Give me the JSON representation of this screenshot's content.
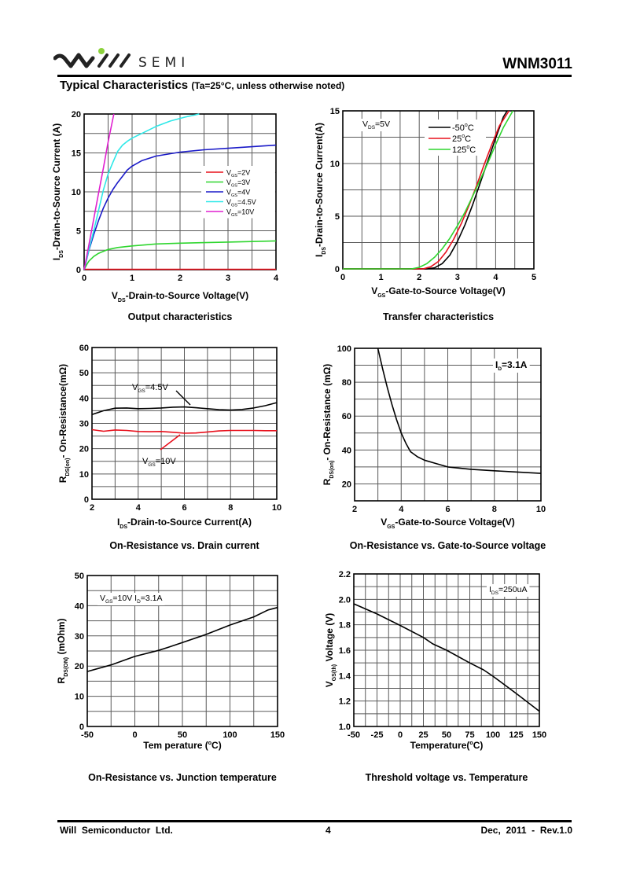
{
  "header": {
    "brand": "SEMI",
    "logo_text": "Will SEMI",
    "part_number": "WNM3011",
    "section_title": "Typical Characteristics",
    "section_condition": "(Ta=25°C, unless otherwise noted)"
  },
  "footer": {
    "company": "Will  Semiconductor  Ltd.",
    "page": "4",
    "revision": "Dec,  2011  -  Rev.1.0"
  },
  "colors": {
    "red": "#e8101c",
    "green": "#2fd62f",
    "blue": "#1a1ac8",
    "cyan": "#2ee8e8",
    "magenta": "#e020d0",
    "black": "#000000",
    "logo_green": "#8cd23c"
  },
  "chart_data": [
    {
      "id": "output",
      "type": "line",
      "title": "Output characteristics",
      "xlabel": "V_DS-Drain-to-Source Voltage(V)",
      "xlabel_main": "V",
      "xlabel_sub": "DS",
      "xlabel_rest": "-Drain-to-Source Voltage(V)",
      "ylabel_main": "I",
      "ylabel_sub": "DS",
      "ylabel_rest": "-Drain-to-Source Current (A)",
      "xlim": [
        0,
        4
      ],
      "ylim": [
        0,
        20
      ],
      "xticks": [
        0,
        1,
        2,
        3,
        4
      ],
      "yticks": [
        0,
        5,
        10,
        15,
        20
      ],
      "xgrid": [
        0.5,
        1,
        1.5,
        2,
        2.5,
        3,
        3.5
      ],
      "ygrid": [
        2.5,
        5,
        7.5,
        10,
        12.5,
        15,
        17.5
      ],
      "legend": "center-right",
      "series": [
        {
          "name": "V_GS=2V",
          "label_main": "V",
          "label_sub": "GS",
          "label_rest": "=2V",
          "color": "#e8101c",
          "x": [
            0,
            4
          ],
          "y": [
            0.05,
            0.05
          ]
        },
        {
          "name": "V_GS=3V",
          "label_main": "V",
          "label_sub": "GS",
          "label_rest": "=3V",
          "color": "#2fd62f",
          "x": [
            0,
            0.05,
            0.1,
            0.2,
            0.3,
            0.5,
            0.7,
            1.0,
            1.5,
            2.0,
            3.0,
            4.0
          ],
          "y": [
            0,
            0.6,
            1.1,
            1.7,
            2.1,
            2.6,
            2.85,
            3.05,
            3.3,
            3.4,
            3.55,
            3.7
          ]
        },
        {
          "name": "V_GS=4V",
          "label_main": "V",
          "label_sub": "GS",
          "label_rest": "=4V",
          "color": "#1a1ac8",
          "x": [
            0,
            0.1,
            0.2,
            0.3,
            0.4,
            0.5,
            0.6,
            0.7,
            0.8,
            0.9,
            1.0,
            1.2,
            1.5,
            2.0,
            2.5,
            3.0,
            3.5,
            4.0
          ],
          "y": [
            0,
            2.5,
            4.5,
            6.3,
            7.9,
            9.2,
            10.3,
            11.2,
            12.0,
            12.8,
            13.3,
            14.0,
            14.6,
            15.1,
            15.4,
            15.6,
            15.8,
            16.0
          ]
        },
        {
          "name": "V_GS=4.5V",
          "label_main": "V",
          "label_sub": "GS",
          "label_rest": "=4.5V",
          "color": "#2ee8e8",
          "x": [
            0,
            0.1,
            0.2,
            0.3,
            0.4,
            0.5,
            0.6,
            0.7,
            0.8,
            0.9,
            1.0,
            1.2,
            1.5,
            1.8,
            2.1,
            2.4
          ],
          "y": [
            0,
            2.6,
            5.0,
            7.6,
            10.2,
            12.3,
            13.8,
            15.2,
            16.0,
            16.5,
            16.9,
            17.5,
            18.4,
            19.1,
            19.6,
            20.0
          ]
        },
        {
          "name": "V_GS=10V",
          "label_main": "V",
          "label_sub": "GS",
          "label_rest": "=10V",
          "color": "#e020d0",
          "x": [
            0,
            0.1,
            0.2,
            0.3,
            0.4,
            0.5,
            0.62
          ],
          "y": [
            0,
            3.2,
            6.5,
            9.8,
            13.0,
            16.4,
            20.0
          ]
        }
      ]
    },
    {
      "id": "transfer",
      "type": "line",
      "title": "Transfer characteristics",
      "xlabel": "V_GS-Gate-to-Source Voltage(V)",
      "xlabel_main": "V",
      "xlabel_sub": "GS",
      "xlabel_rest": "-Gate-to-Source Voltage(V)",
      "ylabel_main": "I",
      "ylabel_sub": "DS",
      "ylabel_rest": "-Drain-to-Source Current(A)",
      "xlim": [
        0,
        5
      ],
      "ylim": [
        0,
        15
      ],
      "xticks": [
        0,
        1,
        2,
        3,
        4,
        5
      ],
      "yticks": [
        0,
        5,
        10,
        15
      ],
      "xgrid": [
        0.5,
        1,
        1.5,
        2,
        2.5,
        3,
        3.5,
        4,
        4.5
      ],
      "ygrid": [
        2.5,
        5,
        7.5,
        10,
        12.5
      ],
      "annotation": {
        "main": "V",
        "sub": "DS",
        "rest": "=5V"
      },
      "legend": "top-center",
      "series": [
        {
          "name": "-50°C",
          "label_main": "-50",
          "label_sup": "o",
          "label_rest": "C",
          "color": "#000000",
          "x": [
            0,
            2.2,
            2.4,
            2.6,
            2.8,
            3.0,
            3.2,
            3.4,
            3.6,
            3.8,
            4.0,
            4.2,
            4.3
          ],
          "y": [
            0,
            0,
            0.1,
            0.5,
            1.3,
            2.6,
            4.2,
            6.1,
            8.2,
            10.3,
            12.4,
            14.4,
            15.0
          ]
        },
        {
          "name": "25°C",
          "label_main": "25",
          "label_sup": "o",
          "label_rest": "C",
          "color": "#e8101c",
          "x": [
            0,
            2.1,
            2.3,
            2.5,
            2.7,
            2.9,
            3.1,
            3.3,
            3.5,
            3.7,
            3.9,
            4.1,
            4.35
          ],
          "y": [
            0,
            0,
            0.2,
            0.7,
            1.6,
            2.8,
            4.3,
            6.0,
            7.9,
            9.9,
            11.8,
            13.6,
            15.0
          ]
        },
        {
          "name": "125°C",
          "label_main": "125",
          "label_sup": "o",
          "label_rest": "C",
          "color": "#2fd62f",
          "x": [
            0,
            1.8,
            2.0,
            2.2,
            2.4,
            2.6,
            2.8,
            3.0,
            3.2,
            3.4,
            3.6,
            3.8,
            4.0,
            4.2,
            4.45
          ],
          "y": [
            0,
            0,
            0.15,
            0.5,
            1.1,
            1.9,
            2.9,
            4.1,
            5.4,
            6.9,
            8.5,
            10.1,
            11.8,
            13.4,
            15.0
          ]
        }
      ]
    },
    {
      "id": "rds_vs_id",
      "type": "line",
      "title": "On-Resistance vs. Drain current",
      "xlabel": "I_DS-Drain-to-Source Current(A)",
      "xlabel_main": "I",
      "xlabel_sub": "DS",
      "xlabel_rest": "-Drain-to-Source Current(A)",
      "ylabel_main": "R",
      "ylabel_sub": "DS(on)",
      "ylabel_rest": "- On-Resistance(mΩ)",
      "xlim": [
        2,
        10
      ],
      "ylim": [
        0,
        60
      ],
      "xticks": [
        2,
        4,
        6,
        8,
        10
      ],
      "yticks": [
        0,
        10,
        20,
        30,
        40,
        50,
        60
      ],
      "xgrid": [
        3,
        4,
        5,
        6,
        7,
        8,
        9
      ],
      "ygrid": [
        5,
        10,
        15,
        20,
        25,
        30,
        35,
        40,
        45,
        50,
        55
      ],
      "series": [
        {
          "name": "V_GS=4.5V",
          "label_main": "V",
          "label_sub": "GS",
          "label_rest": "=4.5V",
          "color": "#000000",
          "x": [
            2,
            2.5,
            3,
            3.5,
            4,
            4.5,
            5,
            5.5,
            6,
            6.5,
            7,
            7.5,
            8,
            8.5,
            9,
            9.5,
            10
          ],
          "y": [
            33.5,
            35,
            36,
            36.1,
            35.8,
            35.9,
            36.1,
            36.4,
            36.5,
            36.2,
            35.8,
            35.4,
            35.3,
            35.5,
            36.1,
            37,
            38.2
          ]
        },
        {
          "name": "V_GS=10V",
          "label_main": "V",
          "label_sub": "GS",
          "label_rest": "=10V",
          "color": "#e8101c",
          "x": [
            2,
            2.5,
            3,
            3.5,
            4,
            4.5,
            5,
            5.5,
            6,
            6.5,
            7,
            7.5,
            8,
            8.5,
            9,
            9.5,
            10
          ],
          "y": [
            27.5,
            26.9,
            27.4,
            27.2,
            26.8,
            26.7,
            26.8,
            26.5,
            26.1,
            26.2,
            26.6,
            27.0,
            27.2,
            27.2,
            27.2,
            27.1,
            27.1
          ]
        }
      ]
    },
    {
      "id": "rds_vs_vgs",
      "type": "line",
      "title": "On-Resistance vs. Gate-to-Source voltage",
      "xlabel": "V_GS-Gate-to-Source Voltage(V)",
      "xlabel_main": "V",
      "xlabel_sub": "GS",
      "xlabel_rest": "-Gate-to-Source Voltage(V)",
      "ylabel_main": "R",
      "ylabel_sub": "DS(on)",
      "ylabel_rest": "- On-Resistance (mΩ)",
      "xlim": [
        2,
        10
      ],
      "ylim": [
        10,
        100
      ],
      "xticks": [
        2,
        4,
        6,
        8,
        10
      ],
      "yticks": [
        20,
        40,
        60,
        80,
        100
      ],
      "xgrid": [
        3,
        4,
        5,
        6,
        7,
        8,
        9
      ],
      "ygrid": [
        20,
        30,
        40,
        50,
        60,
        70,
        80,
        90
      ],
      "annotation": {
        "main": "I",
        "sub": "D",
        "rest": "=3.1A"
      },
      "series": [
        {
          "name": "I_D=3.1A",
          "color": "#000000",
          "x": [
            3.0,
            3.2,
            3.4,
            3.6,
            3.8,
            4.0,
            4.2,
            4.4,
            4.7,
            5.0,
            5.5,
            6.0,
            7.0,
            8.0,
            9.0,
            10.0
          ],
          "y": [
            100,
            88,
            77,
            67,
            58,
            50,
            44,
            39,
            36,
            34,
            32,
            30,
            28.6,
            27.7,
            27,
            26.2
          ]
        }
      ]
    },
    {
      "id": "rds_vs_temp",
      "type": "line",
      "title": "On-Resistance vs. Junction temperature",
      "xlabel": "Temperature(°C)",
      "xlabel_main": "Tem perature (",
      "xlabel_sup": "o",
      "xlabel_rest": "C)",
      "ylabel_main": "R",
      "ylabel_sub": "DS(ON)",
      "ylabel_rest": " (mOhm)",
      "xlim": [
        -50,
        150
      ],
      "ylim": [
        0,
        50
      ],
      "xticks": [
        -50,
        0,
        50,
        100,
        150
      ],
      "yticks": [
        0,
        10,
        20,
        30,
        40,
        50
      ],
      "xgrid": [
        -25,
        0,
        25,
        50,
        75,
        100,
        125
      ],
      "ygrid": [
        5,
        10,
        15,
        20,
        25,
        30,
        35,
        40,
        45
      ],
      "annotation": {
        "main": "V",
        "sub": "GS",
        "rest": "=10V I",
        "sub2": "D",
        "rest2": "=3.1A"
      },
      "series": [
        {
          "name": "V_GS=10V I_D=3.1A",
          "color": "#000000",
          "x": [
            -50,
            -25,
            0,
            25,
            35,
            50,
            75,
            100,
            125,
            140,
            150
          ],
          "y": [
            18.2,
            20.4,
            23.2,
            25.2,
            26.2,
            27.8,
            30.5,
            33.6,
            36.3,
            38.6,
            39.4
          ]
        }
      ]
    },
    {
      "id": "vth_vs_temp",
      "type": "line",
      "title": "Threshold voltage vs. Temperature",
      "xlabel": "Temperature(°C)",
      "xlabel_main": "Temperature(",
      "xlabel_sup": "o",
      "xlabel_rest": "C)",
      "ylabel_main": "V",
      "ylabel_sub": "GS(th)",
      "ylabel_rest": " Voltage (V)",
      "xlim": [
        -50,
        150
      ],
      "ylim": [
        1.0,
        2.2
      ],
      "xticks": [
        -50,
        -25,
        0,
        25,
        50,
        75,
        100,
        125,
        150
      ],
      "yticks": [
        1.0,
        1.2,
        1.4,
        1.6,
        1.8,
        2.0,
        2.2
      ],
      "xticklabels": [
        "-50",
        "-25",
        "0",
        "25",
        "50",
        "75",
        "100",
        "125",
        "150"
      ],
      "yticklabels": [
        "1.0",
        "1.2",
        "1.4",
        "1.6",
        "1.8",
        "2.0",
        "2.2"
      ],
      "xgrid": [
        -37.5,
        -25,
        -12.5,
        0,
        12.5,
        25,
        37.5,
        50,
        62.5,
        75,
        87.5,
        100,
        112.5,
        125,
        137.5
      ],
      "ygrid": [
        1.1,
        1.2,
        1.3,
        1.4,
        1.5,
        1.6,
        1.7,
        1.8,
        1.9,
        2.0,
        2.1
      ],
      "annotation": {
        "main": "I",
        "sub": "DS",
        "rest": "=250uA"
      },
      "series": [
        {
          "name": "I_DS=250uA",
          "color": "#000000",
          "x": [
            -50,
            -25,
            0,
            25,
            35,
            50,
            75,
            90,
            100,
            125,
            150
          ],
          "y": [
            1.965,
            1.885,
            1.795,
            1.7,
            1.65,
            1.6,
            1.5,
            1.445,
            1.395,
            1.26,
            1.12
          ]
        }
      ]
    }
  ]
}
